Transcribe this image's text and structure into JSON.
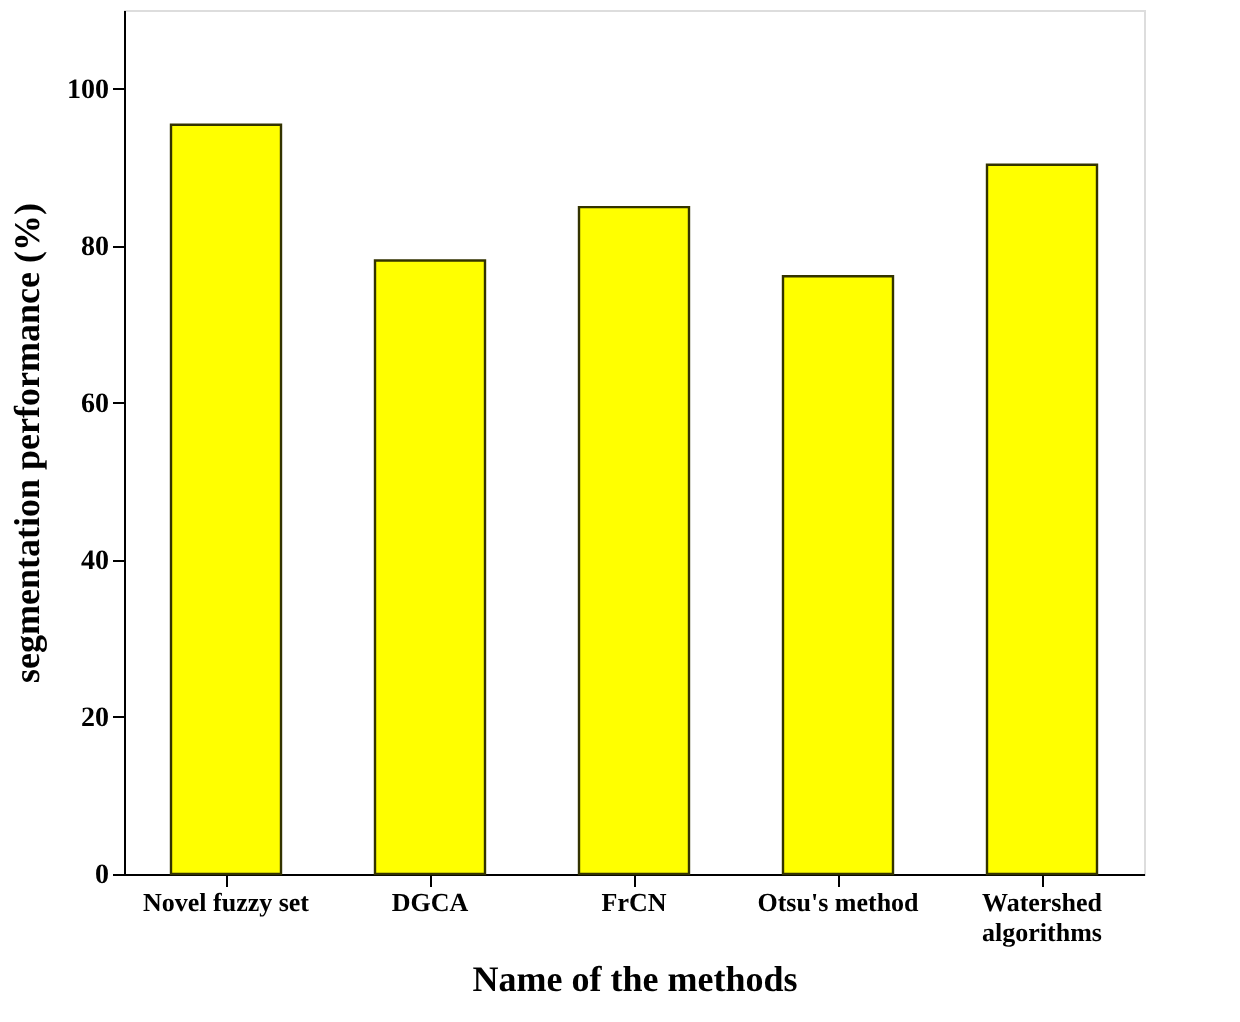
{
  "chart_data": {
    "type": "bar",
    "xlabel": "Name of the methods",
    "ylabel": "segmentation performance (%)",
    "categories": [
      "Novel fuzzy set",
      "DGCA",
      "FrCN",
      "Otsu's method",
      "Watershed algorithms"
    ],
    "values": [
      95.4,
      78.1,
      84.9,
      76.1,
      90.3
    ],
    "color": "#ffff00",
    "ylim": [
      0,
      110
    ],
    "yticks": [
      0,
      20,
      40,
      60,
      80,
      100
    ],
    "grid": false
  }
}
